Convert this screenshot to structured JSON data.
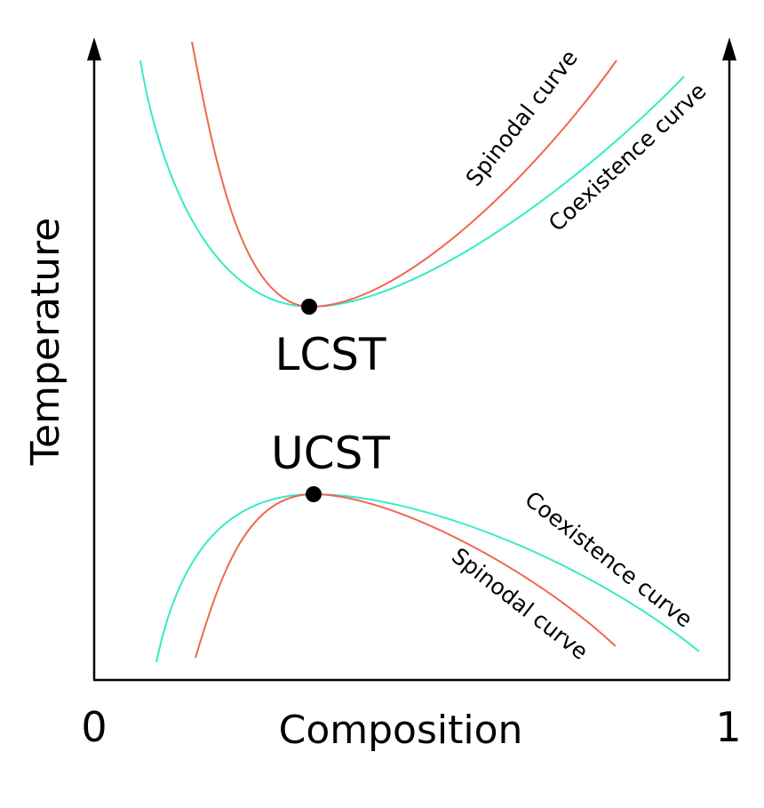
{
  "diagram": {
    "x_axis": {
      "label": "Composition",
      "min_label": "0",
      "max_label": "1"
    },
    "y_axis": {
      "label": "Temperature"
    },
    "points": {
      "lcst": "LCST",
      "ucst": "UCST"
    },
    "curve_labels": {
      "spinodal_top": "Spinodal curve",
      "coexistence_top": "Coexistence curve",
      "coexistence_bottom": "Coexistence curve",
      "spinodal_bottom": "Spinodal curve"
    },
    "colors": {
      "spinodal": "#F0674F",
      "coexistence": "#35EBC6",
      "axes": "#000000",
      "points": "#000000"
    }
  }
}
